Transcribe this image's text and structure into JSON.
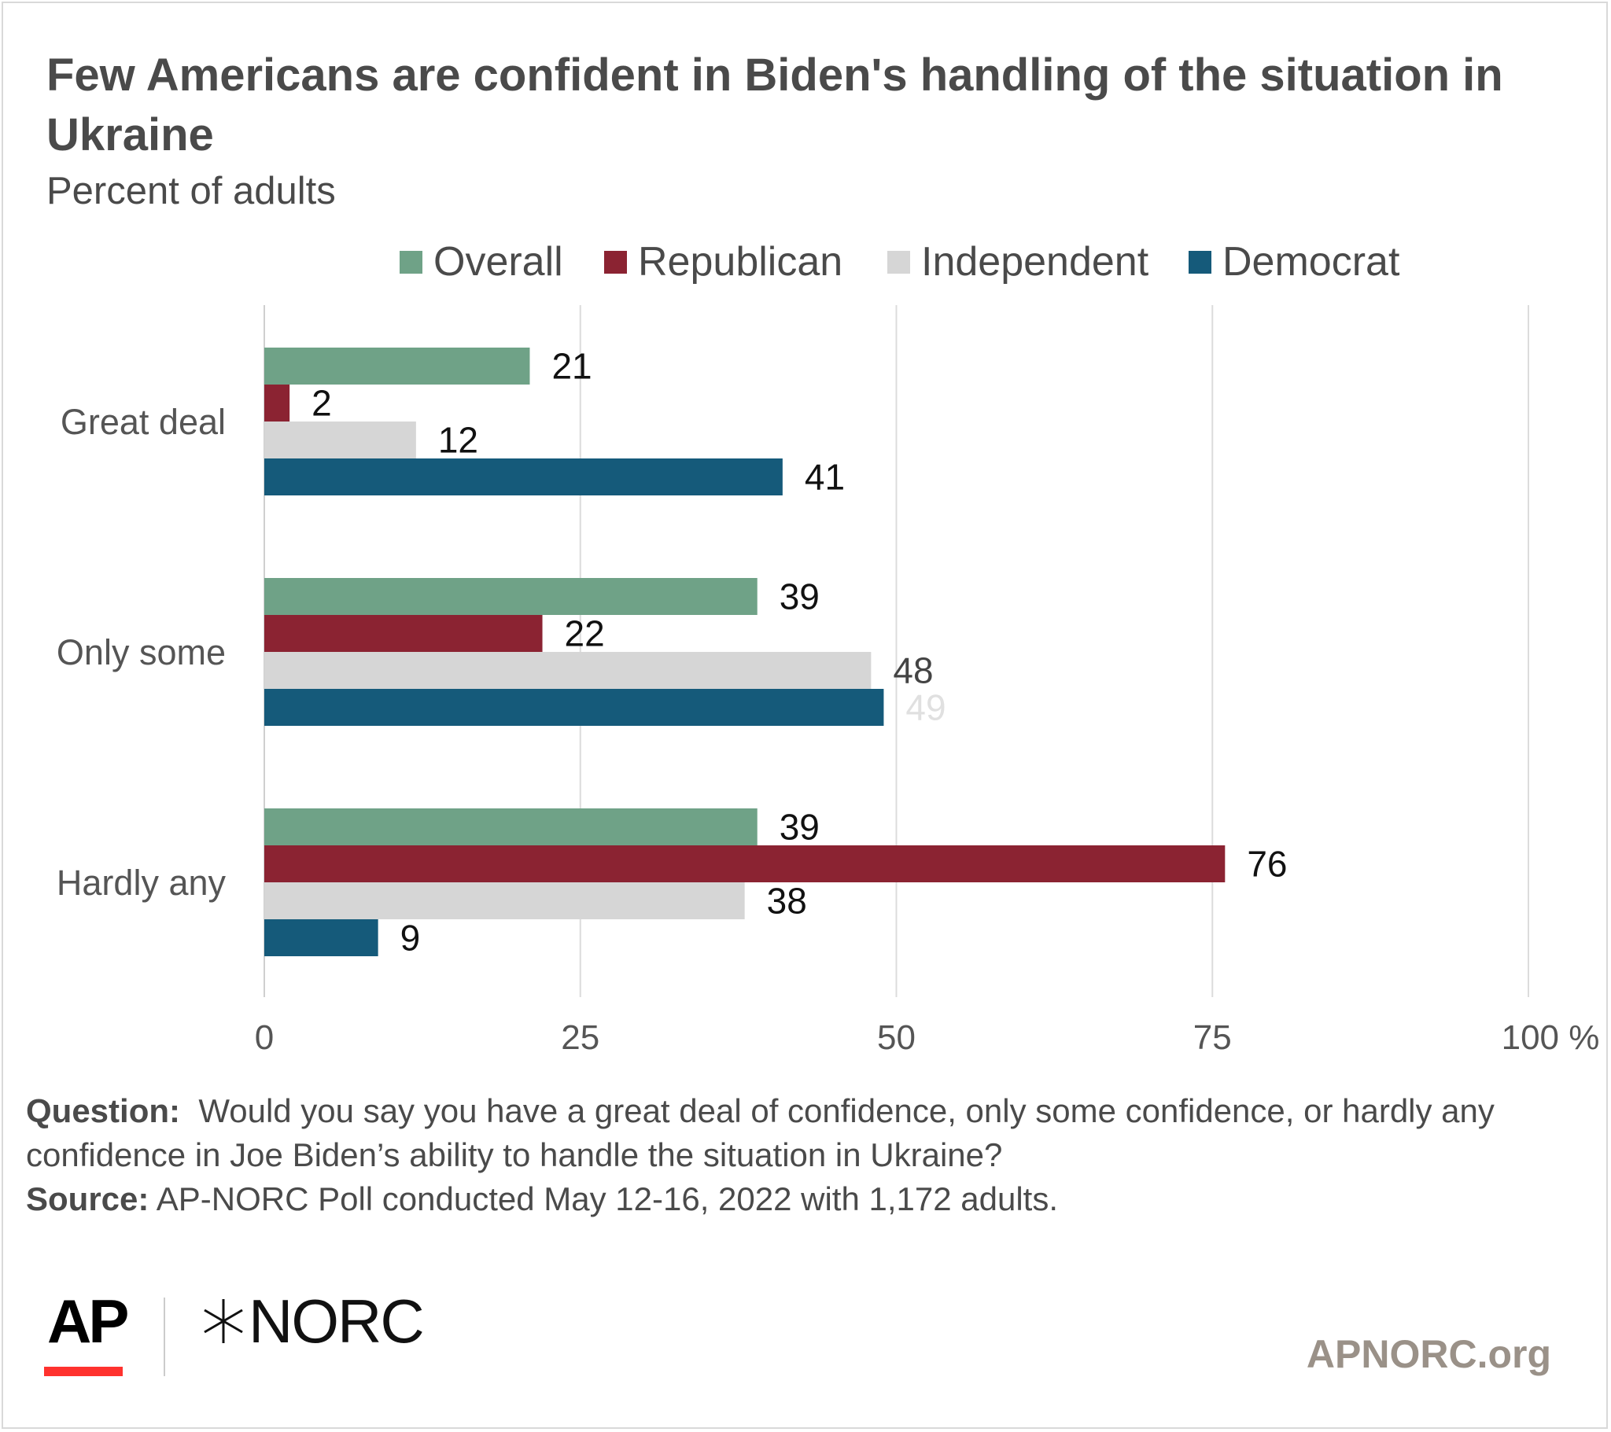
{
  "header": {
    "title": "Few Americans are confident in Biden's handling of the situation in Ukraine",
    "subtitle": "Percent of adults"
  },
  "footer": {
    "question_label": "Question:",
    "question_text": "Would you say you have a great deal of confidence, only some confidence, or hardly any confidence in Joe Biden’s ability to handle the situation in Ukraine?",
    "source_label": "Source:",
    "source_text": "AP-NORC Poll conducted May 12-16, 2022 with 1,172 adults."
  },
  "branding": {
    "ap_logo": "AP",
    "norc_logo": "NORC",
    "site": "APNORC.org"
  },
  "chart_data": {
    "type": "bar",
    "orientation": "horizontal",
    "title": "Few Americans are confident in Biden's handling of the situation in Ukraine",
    "subtitle": "Percent of adults",
    "categories": [
      "Great deal",
      "Only some",
      "Hardly any"
    ],
    "series": [
      {
        "name": "Overall",
        "color": "#6fa287",
        "values": [
          21,
          39,
          39
        ]
      },
      {
        "name": "Republican",
        "color": "#8b2332",
        "values": [
          2,
          22,
          76
        ]
      },
      {
        "name": "Independent",
        "color": "#d6d6d6",
        "values": [
          12,
          48,
          38
        ]
      },
      {
        "name": "Democrat",
        "color": "#155a7a",
        "values": [
          41,
          49,
          9
        ]
      }
    ],
    "xlim": [
      0,
      100
    ],
    "xticks": [
      "0",
      "25",
      "50",
      "75",
      "100 %"
    ],
    "grid": true,
    "legend": "top"
  }
}
